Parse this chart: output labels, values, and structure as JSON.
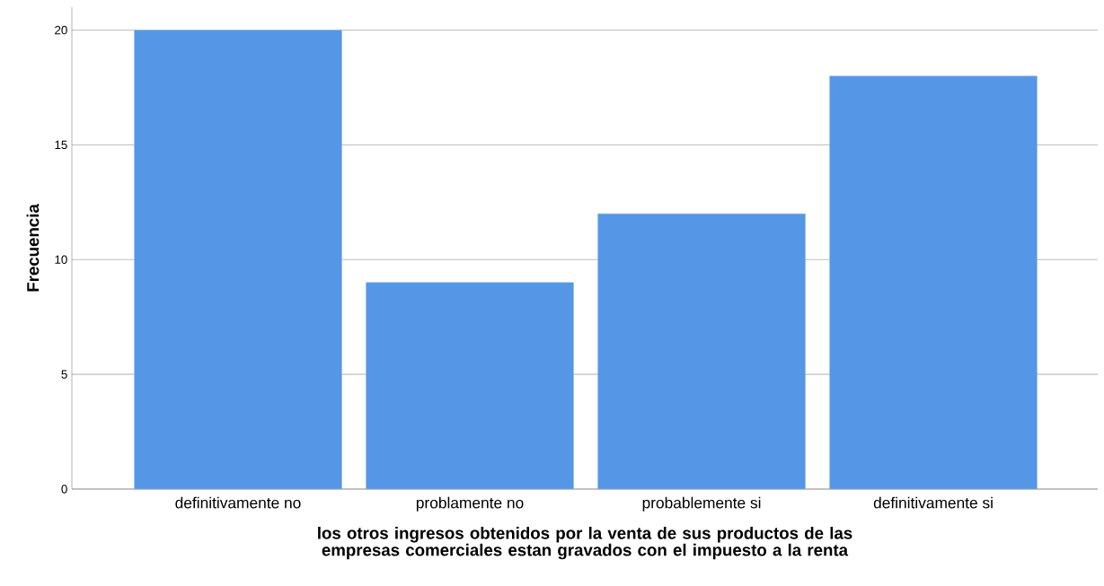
{
  "chart_data": {
    "type": "bar",
    "categories": [
      "definitivamente no",
      "problamente no",
      "probablemente si",
      "definitivamente si"
    ],
    "values": [
      20,
      9,
      12,
      18
    ],
    "color": "#5596e6",
    "xlabel": "los otros ingresos obtenidos por la venta de sus productos de las empresas comerciales estan gravados con el impuesto a la renta",
    "ylabel": "Frecuencia",
    "ylim": [
      0,
      21
    ],
    "yticks": [
      0,
      5,
      10,
      15,
      20
    ],
    "grid": "y"
  }
}
